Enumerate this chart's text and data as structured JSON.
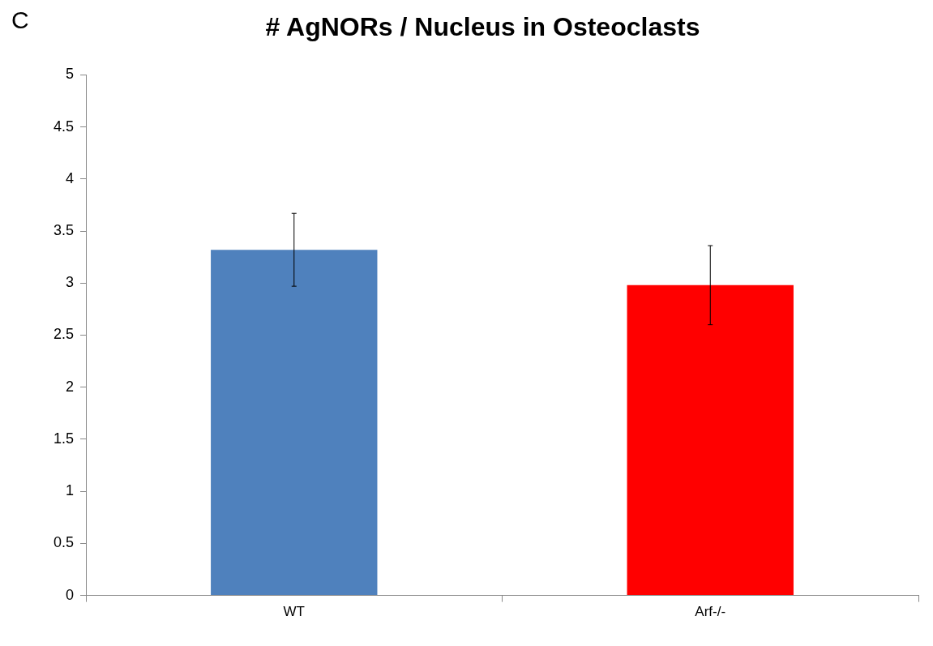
{
  "chart_data": {
    "type": "bar",
    "title": "# AgNORs / Nucleus in Osteoclasts",
    "annotations": [
      "C"
    ],
    "categories": [
      "WT",
      "Arf-/-"
    ],
    "values": [
      3.32,
      2.98
    ],
    "colors": [
      "#4f81bd",
      "#ff0000"
    ],
    "errors": [
      0.35,
      0.38
    ],
    "ylim": [
      0,
      5
    ],
    "yticks": [
      0,
      0.5,
      1,
      1.5,
      2,
      2.5,
      3,
      3.5,
      4,
      4.5,
      5
    ],
    "grid": false,
    "legend": false
  }
}
